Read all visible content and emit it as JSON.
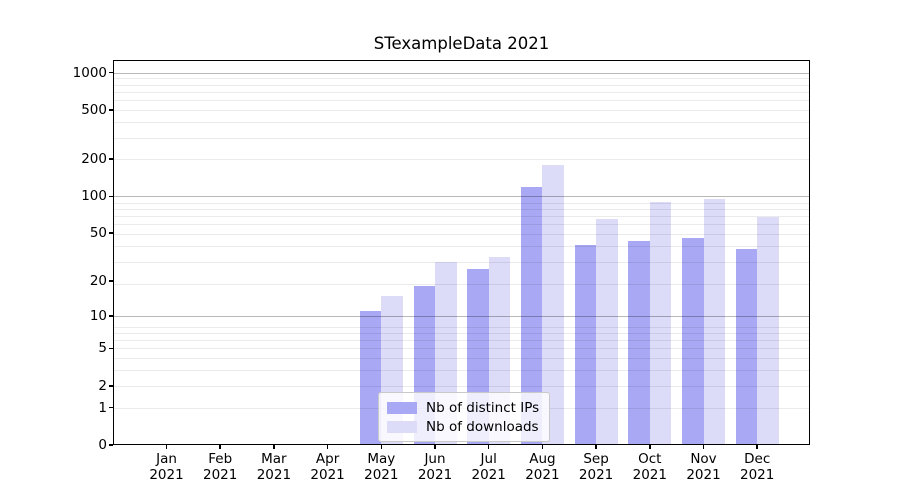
{
  "chart_data": {
    "type": "bar",
    "title": "STexampleData 2021",
    "x_months": [
      "Jan",
      "Feb",
      "Mar",
      "Apr",
      "May",
      "Jun",
      "Jul",
      "Aug",
      "Sep",
      "Oct",
      "Nov",
      "Dec"
    ],
    "x_year": "2021",
    "series": [
      {
        "name": "Nb of distinct IPs",
        "color": "#a8a8f5",
        "values": [
          0,
          0,
          0,
          0,
          11,
          18,
          25,
          118,
          40,
          43,
          46,
          37
        ]
      },
      {
        "name": "Nb of downloads",
        "color": "#dcdcf8",
        "values": [
          0,
          0,
          0,
          0,
          15,
          29,
          32,
          178,
          65,
          90,
          95,
          68
        ]
      }
    ],
    "y_ticks": [
      0,
      1,
      2,
      5,
      10,
      20,
      50,
      100,
      200,
      500,
      1000
    ],
    "y_scale": "log10(1+x)",
    "grid": "on (log minor + decade major)",
    "legend_position": "inside lower-center"
  },
  "colors": {
    "background": "#ffffff",
    "axis": "#000000",
    "text": "#000000",
    "grid_major": "rgba(0,0,0,0.28)",
    "grid_minor": "rgba(0,0,0,0.08)",
    "legend_border": "#c9c9c9"
  }
}
